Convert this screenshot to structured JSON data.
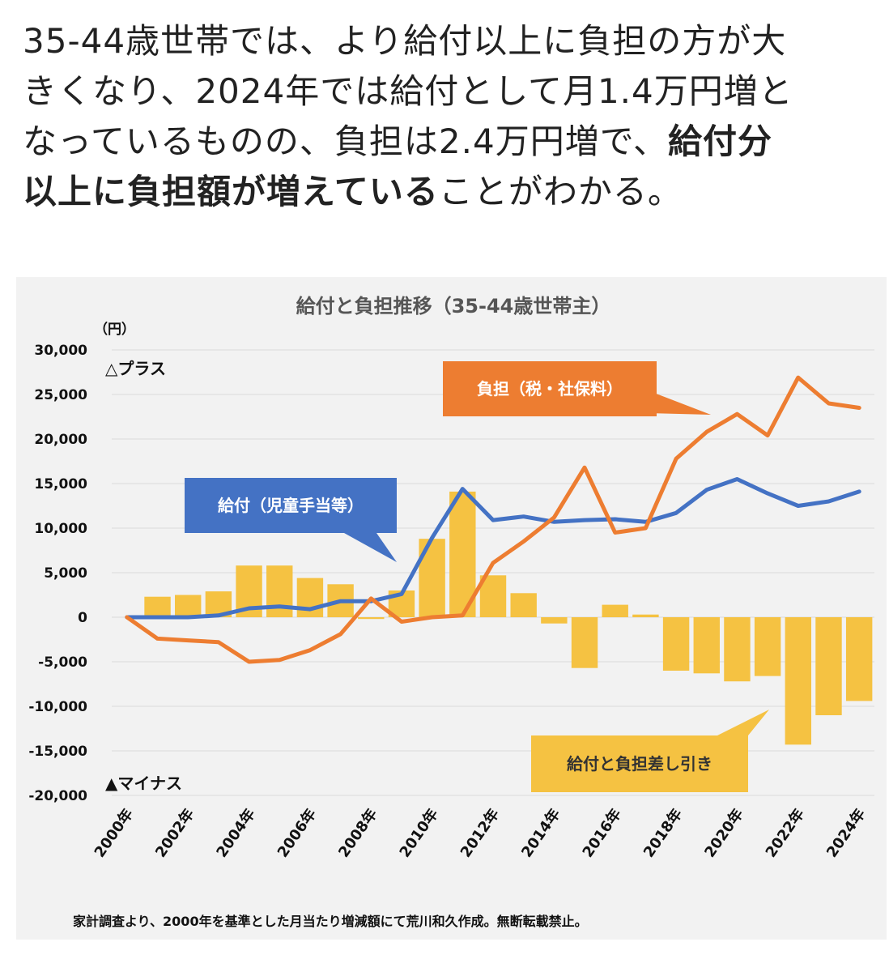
{
  "article": {
    "line1": "35-44歳世帯では、より給付以上に負担の方が大",
    "line2": "きくなり、2024年では給付として月1.4万円増と",
    "line3_a": "なっているものの、負担は2.4万円増で、",
    "line3_b": "給付分",
    "line4_a": "以上に負担額が増えている",
    "line4_b": "ことがわかる。"
  },
  "footnote": "家計調査より、2000年を基準とした月当たり増減額にて荒川和久作成。無断転載禁止。",
  "colors": {
    "benefit": "#4472c4",
    "burden": "#ed7d31",
    "difference": "#f5c242",
    "plot_bg": "#f2f2f2"
  },
  "chart_data": {
    "type": "bar+line",
    "title": "給付と負担推移（35-44歳世帯主）",
    "yunit": "（円）",
    "ylim": [
      -20000,
      30000
    ],
    "yticks": [
      "30,000",
      "25,000",
      "20,000",
      "15,000",
      "10,000",
      "5,000",
      "0",
      "-5,000",
      "-10,000",
      "-15,000",
      "-20,000"
    ],
    "plus_label": "△プラス",
    "minus_label": "▲マイナス",
    "x": [
      2000,
      2001,
      2002,
      2003,
      2004,
      2005,
      2006,
      2007,
      2008,
      2009,
      2010,
      2011,
      2012,
      2013,
      2014,
      2015,
      2016,
      2017,
      2018,
      2019,
      2020,
      2021,
      2022,
      2023,
      2024
    ],
    "xtick_labels": [
      "2000年",
      "2002年",
      "2004年",
      "2006年",
      "2008年",
      "2010年",
      "2012年",
      "2014年",
      "2016年",
      "2018年",
      "2020年",
      "2022年",
      "2024年"
    ],
    "series": [
      {
        "name": "給付と負担差し引き",
        "kind": "bar",
        "values": [
          0,
          2300,
          2500,
          2900,
          5800,
          5800,
          4400,
          3700,
          -200,
          3000,
          8800,
          14100,
          4700,
          2700,
          -700,
          -5700,
          1400,
          300,
          -6000,
          -6300,
          -7200,
          -6600,
          -14300,
          -11000,
          -9400
        ]
      },
      {
        "name": "給付（児童手当等）",
        "kind": "line",
        "values": [
          0,
          0,
          0,
          200,
          1000,
          1200,
          900,
          1800,
          1800,
          2600,
          8900,
          14400,
          10900,
          11300,
          10700,
          10900,
          11000,
          10700,
          11700,
          14300,
          15500,
          13900,
          12500,
          13000,
          14100
        ]
      },
      {
        "name": "負担（税・社保料）",
        "kind": "line",
        "values": [
          0,
          -2400,
          -2600,
          -2800,
          -5000,
          -4800,
          -3700,
          -1900,
          2100,
          -500,
          0,
          200,
          6100,
          8500,
          11200,
          16800,
          9500,
          10000,
          17800,
          20800,
          22800,
          20400,
          26900,
          24000,
          23500
        ]
      }
    ]
  }
}
